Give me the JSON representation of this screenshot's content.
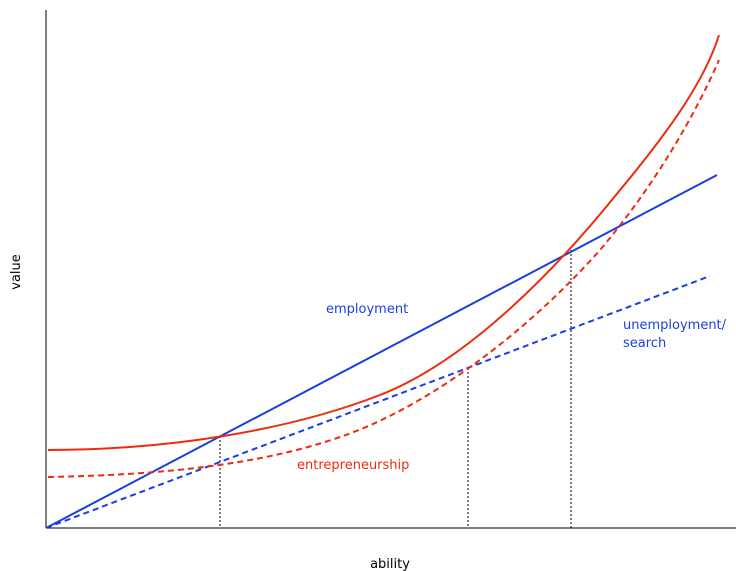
{
  "axes": {
    "xlabel": "ability",
    "ylabel": "value"
  },
  "labels": {
    "employment": "employment",
    "unemployment_line1": "unemployment/",
    "unemployment_line2": "search",
    "entrepreneurship": "entrepreneurship"
  },
  "colors": {
    "blue": "#1a3fe0",
    "red": "#ee2b0e",
    "axis": "#000000"
  }
}
